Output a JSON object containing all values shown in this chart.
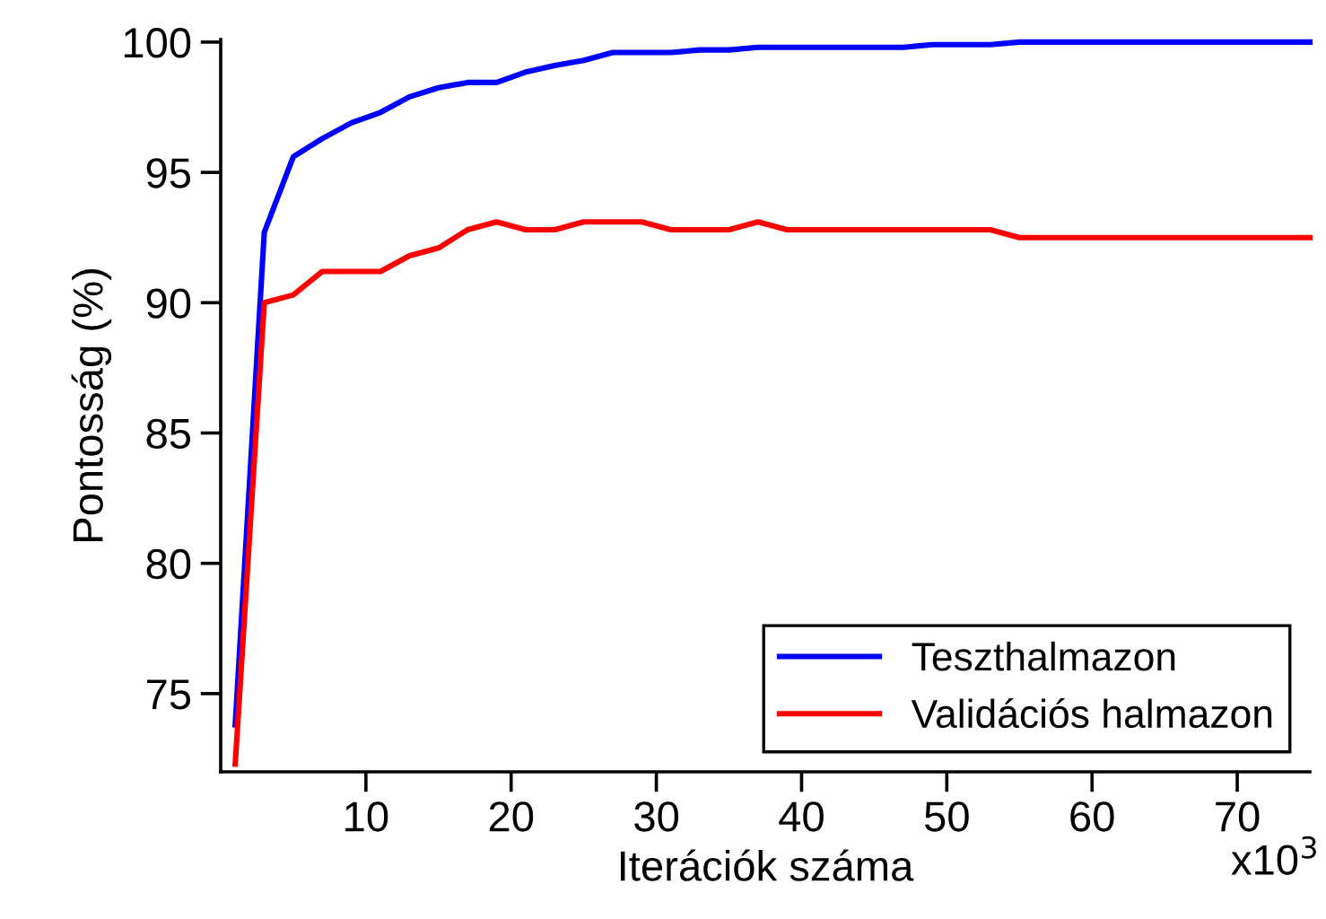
{
  "chart_data": {
    "type": "line",
    "xlabel": "Iterációk száma",
    "ylabel": "Pontosság (%)",
    "x": [
      1,
      3,
      5,
      7,
      9,
      11,
      13,
      15,
      17,
      19,
      21,
      23,
      25,
      27,
      29,
      31,
      33,
      35,
      37,
      39,
      41,
      43,
      45,
      47,
      49,
      51,
      53,
      55,
      57,
      59,
      61,
      63,
      65,
      67,
      69,
      71,
      73,
      75
    ],
    "series": [
      {
        "name": "Teszthalmazon",
        "color": "#0000ff",
        "values": [
          73.8,
          92.7,
          95.6,
          96.3,
          96.9,
          97.3,
          97.9,
          98.25,
          98.45,
          98.45,
          98.85,
          99.1,
          99.3,
          99.6,
          99.6,
          99.6,
          99.7,
          99.7,
          99.8,
          99.8,
          99.8,
          99.8,
          99.8,
          99.8,
          99.9,
          99.9,
          99.9,
          100,
          100,
          100,
          100,
          100,
          100,
          100,
          100,
          100,
          100,
          100
        ]
      },
      {
        "name": "Validációs halmazon",
        "color": "#ff0000",
        "values": [
          72.3,
          90.0,
          90.3,
          91.2,
          91.2,
          91.2,
          91.8,
          92.1,
          92.8,
          93.1,
          92.8,
          92.8,
          93.1,
          93.1,
          93.1,
          92.8,
          92.8,
          92.8,
          93.1,
          92.8,
          92.8,
          92.8,
          92.8,
          92.8,
          92.8,
          92.8,
          92.8,
          92.5,
          92.5,
          92.5,
          92.5,
          92.5,
          92.5,
          92.5,
          92.5,
          92.5,
          92.5,
          92.5
        ]
      }
    ],
    "xlim": [
      0,
      75
    ],
    "xticks": [
      10,
      20,
      30,
      40,
      50,
      60,
      70
    ],
    "annotations": [
      "x10$^{3}$"
    ],
    "ylim": [
      72,
      100.1
    ],
    "yticks": [
      75,
      80,
      85,
      90,
      95,
      100
    ],
    "grid": false,
    "legend": "bottom right",
    "marker": "none",
    "line_style": "solid"
  }
}
